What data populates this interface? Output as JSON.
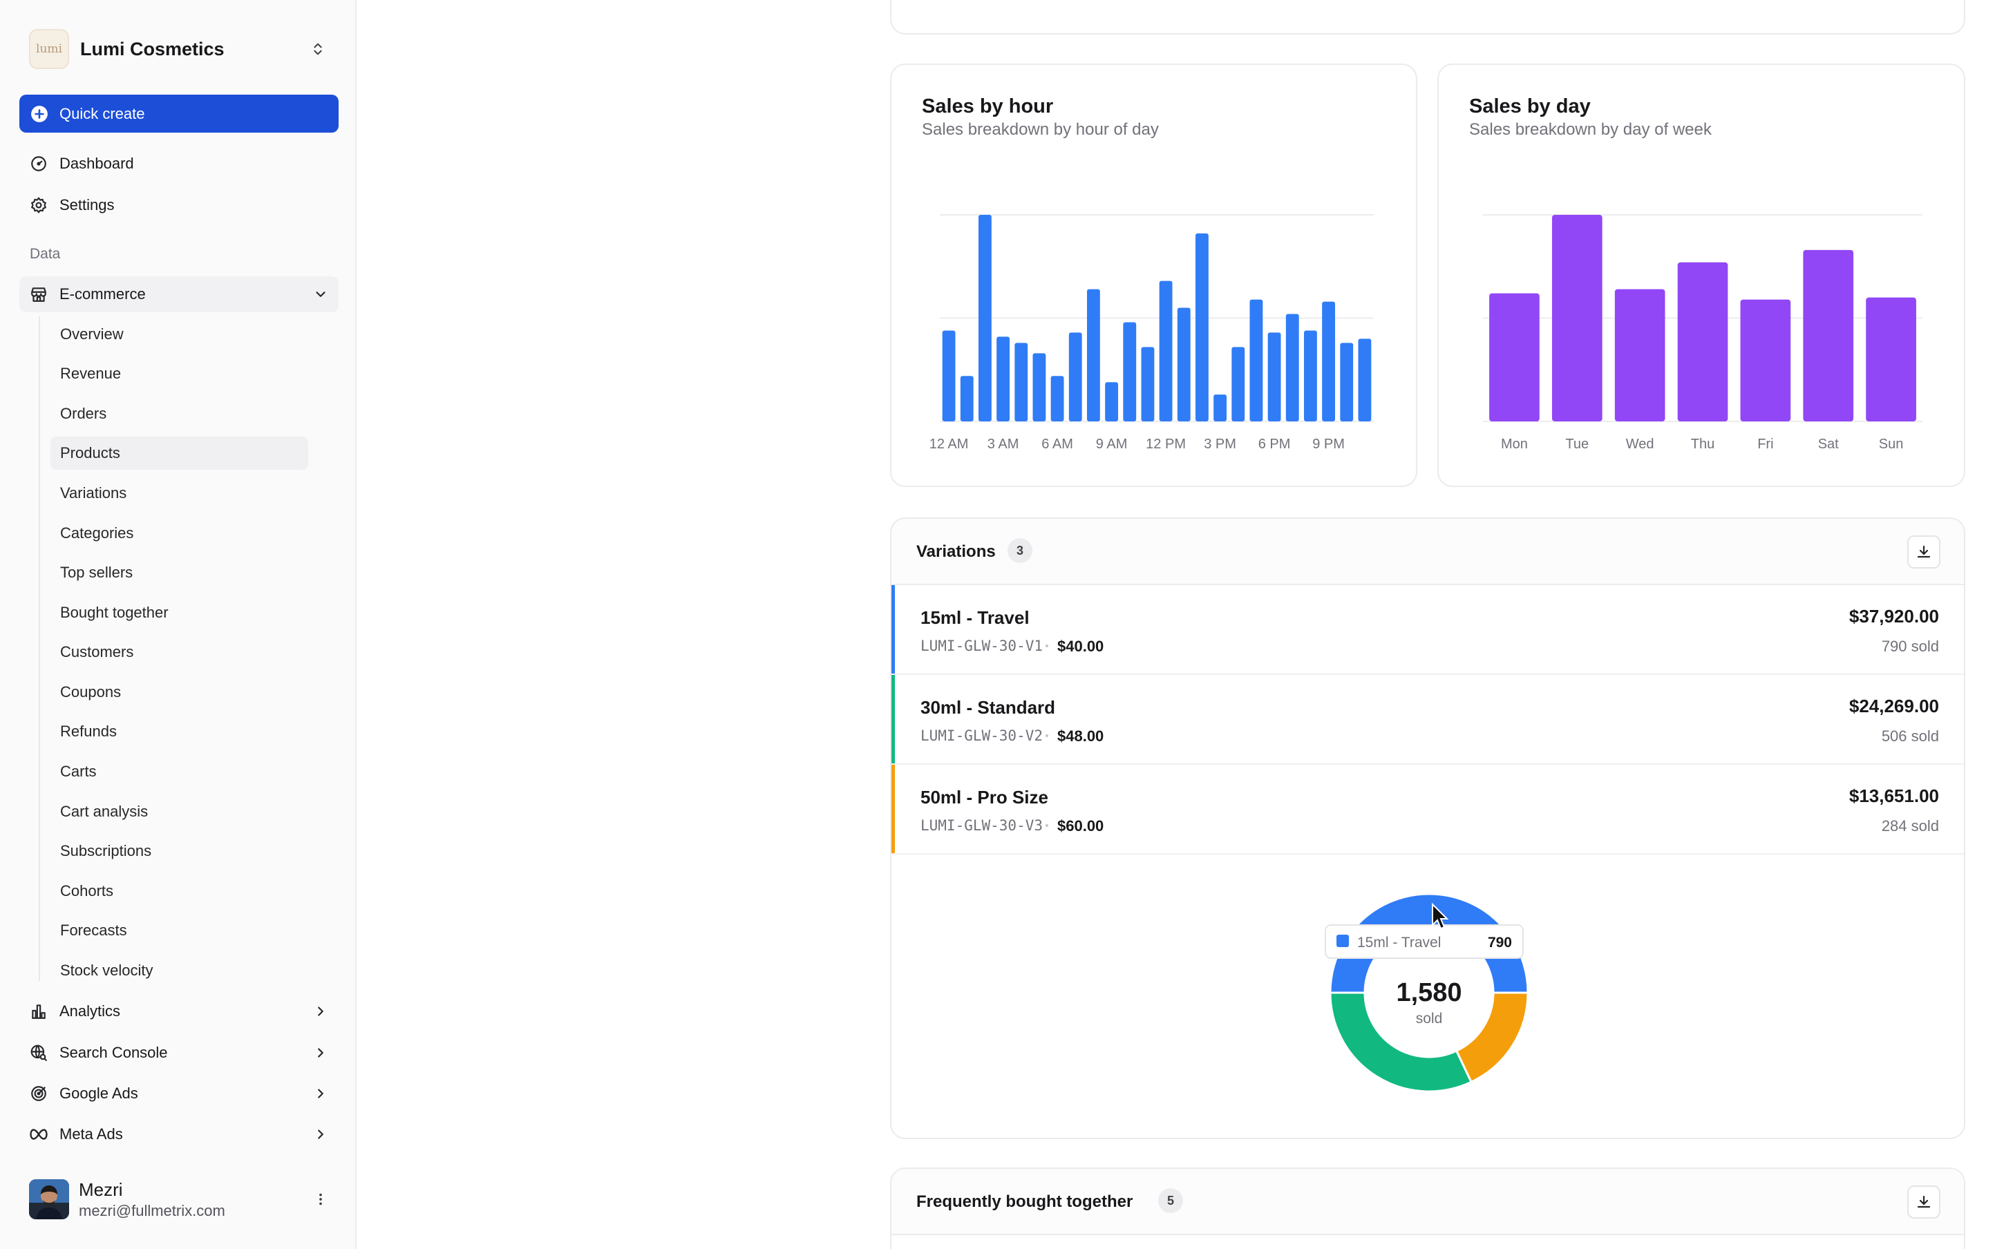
{
  "workspace": {
    "name": "Lumi Cosmetics",
    "logo_text": "lumi"
  },
  "sidebar": {
    "quick_create_label": "Quick create",
    "top_items": [
      {
        "label": "Dashboard",
        "icon": "dashboard-icon"
      },
      {
        "label": "Settings",
        "icon": "gear-icon"
      }
    ],
    "section_label": "Data",
    "ecommerce": {
      "label": "E-commerce",
      "icon": "store-icon",
      "expanded": true,
      "sub_items": [
        "Overview",
        "Revenue",
        "Orders",
        "Products",
        "Variations",
        "Categories",
        "Top sellers",
        "Bought together",
        "Customers",
        "Coupons",
        "Refunds",
        "Carts",
        "Cart analysis",
        "Subscriptions",
        "Cohorts",
        "Forecasts",
        "Stock velocity"
      ],
      "active_sub_item": "Products"
    },
    "groups": [
      {
        "label": "Analytics",
        "icon": "bar-chart-icon"
      },
      {
        "label": "Search Console",
        "icon": "globe-search-icon"
      },
      {
        "label": "Google Ads",
        "icon": "target-icon"
      },
      {
        "label": "Meta Ads",
        "icon": "meta-infinity-icon"
      }
    ],
    "user": {
      "name": "Mezri",
      "email": "mezri@fullmetrix.com"
    }
  },
  "colors": {
    "primary": "#1d4ed8",
    "hour_bars": "#2f7cf6",
    "day_bars": "#9147f5",
    "variation_travel": "#2f7cf6",
    "variation_standard": "#11b981",
    "variation_pro": "#f59e0b"
  },
  "chart_data": [
    {
      "type": "bar",
      "title": "Sales by hour",
      "subtitle": "Sales breakdown by hour of day",
      "categories": [
        "12 AM",
        "1 AM",
        "2 AM",
        "3 AM",
        "4 AM",
        "5 AM",
        "6 AM",
        "7 AM",
        "8 AM",
        "9 AM",
        "10 AM",
        "11 AM",
        "12 PM",
        "1 PM",
        "2 PM",
        "3 PM",
        "4 PM",
        "5 PM",
        "6 PM",
        "7 PM",
        "8 PM",
        "9 PM",
        "10 PM",
        "11 PM"
      ],
      "tick_labels": [
        "12 AM",
        "3 AM",
        "6 AM",
        "9 AM",
        "12 PM",
        "3 PM",
        "6 PM",
        "9 PM"
      ],
      "values": [
        44,
        22,
        100,
        41,
        38,
        33,
        22,
        43,
        64,
        19,
        48,
        36,
        68,
        55,
        91,
        13,
        36,
        59,
        43,
        52,
        44,
        58,
        38,
        40
      ],
      "ylim": [
        0,
        100
      ],
      "grid": true
    },
    {
      "type": "bar",
      "title": "Sales by day",
      "subtitle": "Sales breakdown by day of week",
      "categories": [
        "Mon",
        "Tue",
        "Wed",
        "Thu",
        "Fri",
        "Sat",
        "Sun"
      ],
      "values": [
        62,
        100,
        64,
        77,
        59,
        83,
        60
      ],
      "ylim": [
        0,
        100
      ],
      "grid": true
    },
    {
      "type": "pie",
      "title": "",
      "center_value": "1,580",
      "center_label": "sold",
      "slices": [
        {
          "name": "15ml - Travel",
          "value": 790
        },
        {
          "name": "30ml - Standard",
          "value": 506
        },
        {
          "name": "50ml - Pro Size",
          "value": 284
        }
      ],
      "tooltip": {
        "name": "15ml - Travel",
        "value": "790"
      }
    }
  ],
  "variations": {
    "title": "Variations",
    "count": "3",
    "rows": [
      {
        "name": "15ml - Travel",
        "sku": "LUMI-GLW-30-V1",
        "price": "$40.00",
        "revenue": "$37,920.00",
        "sold": "790 sold"
      },
      {
        "name": "30ml - Standard",
        "sku": "LUMI-GLW-30-V2",
        "price": "$48.00",
        "revenue": "$24,269.00",
        "sold": "506 sold"
      },
      {
        "name": "50ml - Pro Size",
        "sku": "LUMI-GLW-30-V3",
        "price": "$60.00",
        "revenue": "$13,651.00",
        "sold": "284 sold"
      }
    ]
  },
  "frequently_bought_together": {
    "title": "Frequently bought together",
    "count": "5"
  }
}
